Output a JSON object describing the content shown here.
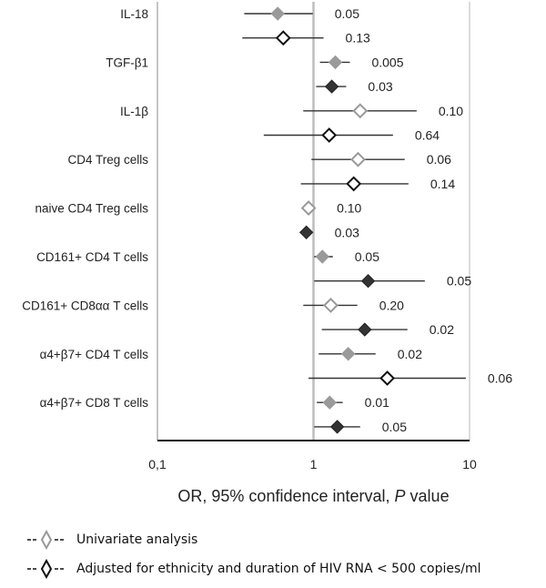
{
  "chart_data": {
    "type": "forest",
    "xlabel_parts": [
      "OR, 95% confidence interval, ",
      "P",
      " value"
    ],
    "xscale": "log",
    "xlim": [
      0.1,
      10
    ],
    "xticks": [
      0.1,
      1,
      10
    ],
    "xtick_labels": [
      "0,1",
      "1",
      "10"
    ],
    "reference_line": 1,
    "categories": [
      "IL-18",
      "TGF-β1",
      "IL-1β",
      "CD4 Treg cells",
      "naive CD4 Treg cells",
      "CD161+ CD4 T cells",
      "CD161+ CD8αα T cells",
      "α4+β7+  CD4 T cells",
      "α4+β7+  CD8 T cells"
    ],
    "series": [
      {
        "name": "Univariate analysis",
        "color": "#999999",
        "points": [
          {
            "or": 0.59,
            "lo": 0.36,
            "hi": 0.99,
            "p": "0.05",
            "filled": true
          },
          {
            "or": 1.38,
            "lo": 1.1,
            "hi": 1.71,
            "p": "0.005",
            "filled": true
          },
          {
            "or": 1.99,
            "lo": 0.86,
            "hi": 4.58,
            "p": "0.10",
            "filled": false
          },
          {
            "or": 1.93,
            "lo": 0.97,
            "hi": 3.84,
            "p": "0.06",
            "filled": false
          },
          {
            "or": 0.93,
            "lo": 0.93,
            "hi": 0.93,
            "p": "0.10",
            "filled": false
          },
          {
            "or": 1.14,
            "lo": 1.01,
            "hi": 1.33,
            "p": "0.05",
            "filled": true
          },
          {
            "or": 1.29,
            "lo": 0.86,
            "hi": 1.91,
            "p": "0.20",
            "filled": false
          },
          {
            "or": 1.67,
            "lo": 1.08,
            "hi": 2.5,
            "p": "0.02",
            "filled": true
          },
          {
            "or": 1.27,
            "lo": 1.05,
            "hi": 1.54,
            "p": "0.01",
            "filled": true
          }
        ]
      },
      {
        "name": "Adjusted for ethnicity and duration of HIV RNA < 500 copies/ml",
        "color": "#333333",
        "points": [
          {
            "or": 0.64,
            "lo": 0.35,
            "hi": 1.16,
            "p": "0.13",
            "filled": false
          },
          {
            "or": 1.31,
            "lo": 1.04,
            "hi": 1.62,
            "p": "0.03",
            "filled": true
          },
          {
            "or": 1.26,
            "lo": 0.48,
            "hi": 3.23,
            "p": "0.64",
            "filled": false
          },
          {
            "or": 1.81,
            "lo": 0.83,
            "hi": 4.06,
            "p": "0.14",
            "filled": false
          },
          {
            "or": 0.9,
            "lo": 0.9,
            "hi": 0.9,
            "p": "0.03",
            "filled": true
          },
          {
            "or": 2.24,
            "lo": 1.01,
            "hi": 5.17,
            "p": "0.05",
            "filled": true
          },
          {
            "or": 2.13,
            "lo": 1.13,
            "hi": 4.0,
            "p": "0.02",
            "filled": true
          },
          {
            "or": 2.97,
            "lo": 0.93,
            "hi": 9.46,
            "p": "0.06",
            "filled": false
          },
          {
            "or": 1.42,
            "lo": 1.01,
            "hi": 1.99,
            "p": "0.05",
            "filled": true
          }
        ]
      }
    ],
    "legend": {
      "position": "bottom-left",
      "items": [
        "Univariate analysis",
        "Adjusted for ethnicity and duration of HIV RNA < 500 copies/ml"
      ]
    }
  }
}
